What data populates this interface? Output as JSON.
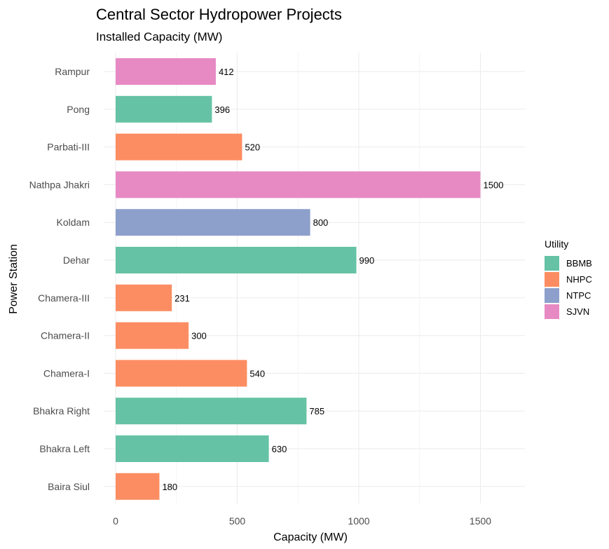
{
  "chart_data": {
    "type": "bar",
    "orientation": "horizontal",
    "title": "Central Sector Hydropower Projects",
    "subtitle": "Installed Capacity (MW)",
    "xlabel": "Capacity (MW)",
    "ylabel": "Power Station",
    "xlim": [
      0,
      1680
    ],
    "xticks": [
      0,
      500,
      1000,
      1500
    ],
    "grid": true,
    "legend": {
      "title": "Utility",
      "placement": "right",
      "entries": [
        {
          "name": "BBMB",
          "color": "#66C2A5"
        },
        {
          "name": "NHPC",
          "color": "#FC8D62"
        },
        {
          "name": "NTPC",
          "color": "#8DA0CB"
        },
        {
          "name": "SJVN",
          "color": "#E78AC3"
        }
      ]
    },
    "bars": [
      {
        "station": "Baira Siul",
        "value": 180,
        "utility": "NHPC"
      },
      {
        "station": "Bhakra Left",
        "value": 630,
        "utility": "BBMB"
      },
      {
        "station": "Bhakra Right",
        "value": 785,
        "utility": "BBMB"
      },
      {
        "station": "Chamera-I",
        "value": 540,
        "utility": "NHPC"
      },
      {
        "station": "Chamera-II",
        "value": 300,
        "utility": "NHPC"
      },
      {
        "station": "Chamera-III",
        "value": 231,
        "utility": "NHPC"
      },
      {
        "station": "Dehar",
        "value": 990,
        "utility": "BBMB"
      },
      {
        "station": "Koldam",
        "value": 800,
        "utility": "NTPC"
      },
      {
        "station": "Nathpa Jhakri",
        "value": 1500,
        "utility": "SJVN"
      },
      {
        "station": "Parbati-III",
        "value": 520,
        "utility": "NHPC"
      },
      {
        "station": "Pong",
        "value": 396,
        "utility": "BBMB"
      },
      {
        "station": "Rampur",
        "value": 412,
        "utility": "SJVN"
      }
    ]
  }
}
